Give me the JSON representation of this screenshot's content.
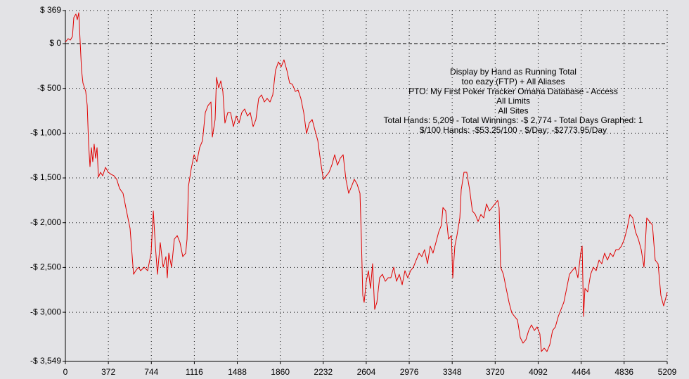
{
  "chart_data": {
    "type": "line",
    "color": "#e00000",
    "grid": true,
    "annotations": [
      "Display by Hand as Running Total",
      "too eazy (FTP) + All Aliases",
      "PTO: My First Poker Tracker Omaha Database - Access",
      "All Limits",
      "All Sites",
      "Total Hands: 5,209 - Total Winnings: -$ 2,774 - Total Days Graphed: 1",
      "$/100 Hands: -$53.25/100 - $/Day: -$2773.95/Day"
    ],
    "xlim": [
      0,
      5209
    ],
    "xticks": [
      0,
      372,
      744,
      1116,
      1488,
      1860,
      2232,
      2604,
      2976,
      3348,
      3720,
      4092,
      4464,
      4836,
      5209
    ],
    "ylim": [
      -3549,
      369
    ],
    "yticks": [
      {
        "value": 369,
        "label": "$ 369"
      },
      {
        "value": 0,
        "label": "$ 0"
      },
      {
        "value": -500,
        "label": "-$ 500"
      },
      {
        "value": -1000,
        "label": "-$ 1,000"
      },
      {
        "value": -1500,
        "label": "-$ 1,500"
      },
      {
        "value": -2000,
        "label": "-$ 2,000"
      },
      {
        "value": -2500,
        "label": "-$ 2,500"
      },
      {
        "value": -3000,
        "label": "-$ 3,000"
      },
      {
        "value": -3549,
        "label": "-$ 3,549"
      }
    ],
    "x": [
      0,
      24,
      43,
      61,
      73,
      91,
      103,
      116,
      128,
      140,
      152,
      176,
      189,
      201,
      213,
      225,
      237,
      249,
      262,
      274,
      286,
      304,
      323,
      347,
      371,
      396,
      420,
      444,
      469,
      499,
      529,
      560,
      590,
      609,
      633,
      651,
      682,
      712,
      742,
      761,
      779,
      797,
      821,
      846,
      870,
      882,
      895,
      919,
      943,
      968,
      992,
      1016,
      1041,
      1053,
      1065,
      1089,
      1114,
      1138,
      1162,
      1187,
      1211,
      1235,
      1260,
      1272,
      1296,
      1308,
      1327,
      1345,
      1363,
      1381,
      1406,
      1430,
      1454,
      1479,
      1503,
      1527,
      1552,
      1576,
      1600,
      1625,
      1649,
      1673,
      1698,
      1722,
      1746,
      1771,
      1795,
      1819,
      1844,
      1868,
      1892,
      1917,
      1941,
      1965,
      1990,
      2014,
      2038,
      2063,
      2087,
      2111,
      2136,
      2160,
      2185,
      2209,
      2233,
      2258,
      2282,
      2306,
      2331,
      2355,
      2379,
      2404,
      2428,
      2452,
      2477,
      2501,
      2525,
      2550,
      2562,
      2574,
      2586,
      2604,
      2623,
      2641,
      2659,
      2677,
      2696,
      2720,
      2744,
      2769,
      2793,
      2817,
      2842,
      2866,
      2890,
      2915,
      2939,
      2963,
      2988,
      3012,
      3036,
      3061,
      3085,
      3109,
      3134,
      3158,
      3182,
      3207,
      3231,
      3255,
      3268,
      3292,
      3316,
      3341,
      3353,
      3371,
      3389,
      3414,
      3426,
      3450,
      3474,
      3499,
      3523,
      3548,
      3572,
      3596,
      3621,
      3645,
      3669,
      3694,
      3718,
      3742,
      3754,
      3767,
      3791,
      3815,
      3840,
      3864,
      3888,
      3913,
      3937,
      3961,
      3986,
      4010,
      4034,
      4059,
      4083,
      4107,
      4120,
      4144,
      4168,
      4193,
      4217,
      4241,
      4266,
      4290,
      4314,
      4339,
      4363,
      4387,
      4412,
      4436,
      4460,
      4473,
      4485,
      4497,
      4521,
      4546,
      4570,
      4594,
      4619,
      4643,
      4667,
      4692,
      4716,
      4740,
      4765,
      4789,
      4813,
      4838,
      4862,
      4886,
      4911,
      4935,
      4959,
      4984,
      5008,
      5032,
      5057,
      5081,
      5105,
      5130,
      5154,
      5178,
      5203,
      5209
    ],
    "values": [
      16,
      55,
      39,
      79,
      291,
      330,
      267,
      345,
      16,
      -298,
      -440,
      -534,
      -691,
      -1123,
      -1374,
      -1162,
      -1319,
      -1123,
      -1280,
      -1162,
      -1492,
      -1437,
      -1476,
      -1382,
      -1437,
      -1460,
      -1476,
      -1515,
      -1618,
      -1672,
      -1869,
      -2065,
      -2576,
      -2536,
      -2497,
      -2536,
      -2497,
      -2536,
      -2340,
      -1869,
      -2261,
      -2576,
      -2222,
      -2497,
      -2379,
      -2615,
      -2340,
      -2497,
      -2183,
      -2144,
      -2222,
      -2379,
      -2340,
      -2183,
      -1594,
      -1398,
      -1241,
      -1319,
      -1162,
      -1084,
      -770,
      -691,
      -652,
      -1044,
      -848,
      -377,
      -495,
      -416,
      -534,
      -887,
      -770,
      -770,
      -927,
      -809,
      -887,
      -770,
      -730,
      -809,
      -770,
      -927,
      -848,
      -612,
      -573,
      -652,
      -612,
      -652,
      -573,
      -298,
      -204,
      -259,
      -181,
      -298,
      -440,
      -455,
      -534,
      -518,
      -612,
      -770,
      -1005,
      -887,
      -848,
      -966,
      -1084,
      -1319,
      -1515,
      -1476,
      -1437,
      -1358,
      -1241,
      -1358,
      -1280,
      -1241,
      -1515,
      -1672,
      -1594,
      -1515,
      -1570,
      -1672,
      -2183,
      -2811,
      -2890,
      -2654,
      -2536,
      -2733,
      -2458,
      -2968,
      -2890,
      -2615,
      -2576,
      -2654,
      -2615,
      -2615,
      -2497,
      -2654,
      -2576,
      -2693,
      -2536,
      -2615,
      -2536,
      -2497,
      -2418,
      -2340,
      -2379,
      -2301,
      -2458,
      -2261,
      -2340,
      -2222,
      -2104,
      -2026,
      -1830,
      -1869,
      -2183,
      -2144,
      -2615,
      -2261,
      -2144,
      -1947,
      -1633,
      -1437,
      -1437,
      -1633,
      -1869,
      -1908,
      -1987,
      -1908,
      -1947,
      -1790,
      -1869,
      -1830,
      -1790,
      -1751,
      -1830,
      -2497,
      -2576,
      -2733,
      -2890,
      -3007,
      -3047,
      -3086,
      -3282,
      -3345,
      -3306,
      -3204,
      -3141,
      -3204,
      -3164,
      -3243,
      -3439,
      -3400,
      -3439,
      -3361,
      -3204,
      -3164,
      -3047,
      -2968,
      -2890,
      -2733,
      -2576,
      -2536,
      -2497,
      -2615,
      -2340,
      -2261,
      -3047,
      -2733,
      -2772,
      -2576,
      -2497,
      -2536,
      -2418,
      -2458,
      -2340,
      -2418,
      -2340,
      -2379,
      -2301,
      -2301,
      -2261,
      -2183,
      -2065,
      -1908,
      -1947,
      -2104,
      -2183,
      -2301,
      -2497,
      -1947,
      -1987,
      -2026,
      -2418,
      -2458,
      -2811,
      -2929,
      -2811,
      -2774
    ]
  }
}
